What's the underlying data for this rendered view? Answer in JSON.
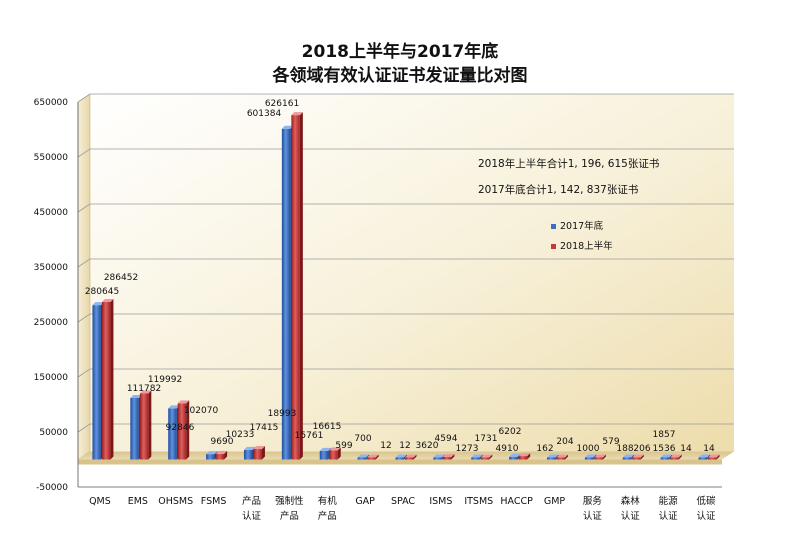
{
  "chart_data": {
    "type": "bar",
    "title_lines": [
      "2018上半年与2017年底",
      "各领域有效认证证书发证量比对图"
    ],
    "categories": [
      [
        "QMS"
      ],
      [
        "EMS"
      ],
      [
        "OHSMS"
      ],
      [
        "FSMS"
      ],
      [
        "产品",
        "认证"
      ],
      [
        "强制性",
        "产品"
      ],
      [
        "有机",
        "产品"
      ],
      [
        "GAP"
      ],
      [
        "SPAC"
      ],
      [
        "ISMS"
      ],
      [
        "ITSMS"
      ],
      [
        "HACCP"
      ],
      [
        "GMP"
      ],
      [
        "服务",
        "认证"
      ],
      [
        "森林",
        "认证"
      ],
      [
        "能源",
        "认证"
      ],
      [
        "低碳",
        "认证"
      ]
    ],
    "series": [
      {
        "name": "2017年底",
        "color": "#3a6fc4",
        "values": [
          280645,
          111782,
          92846,
          9690,
          17415,
          601384,
          15761,
          599,
          12,
          3620,
          1273,
          4910,
          162,
          1000,
          188,
          1536,
          14
        ],
        "labels": [
          "280645",
          "111782",
          "92846",
          "9690",
          "17415",
          "601384",
          "15761",
          "599",
          "12",
          "3620",
          "1273",
          "4910",
          "162",
          "1000",
          "188",
          "1536",
          "14"
        ]
      },
      {
        "name": "2018上半年",
        "color": "#c83a3a",
        "values": [
          286452,
          119992,
          102070,
          10233,
          18993,
          626161,
          16615,
          700,
          12,
          4594,
          1731,
          6202,
          204,
          579,
          206,
          1857,
          14
        ],
        "labels": [
          "286452",
          "119992",
          "102070",
          "10233",
          "18993",
          "626161",
          "16615",
          "700",
          "12",
          "4594",
          "1731",
          "6202",
          "204",
          "579",
          "206",
          "1857",
          "14"
        ]
      }
    ],
    "y_ticks": [
      650000,
      550000,
      450000,
      350000,
      250000,
      150000,
      50000,
      -50000
    ],
    "ylim": [
      -50000,
      650000
    ],
    "grid": true,
    "legend_position": "right",
    "annotations": [
      "2018年上半年合计1, 196, 615张证书",
      "2017年底合计1, 142, 837张证书"
    ]
  }
}
